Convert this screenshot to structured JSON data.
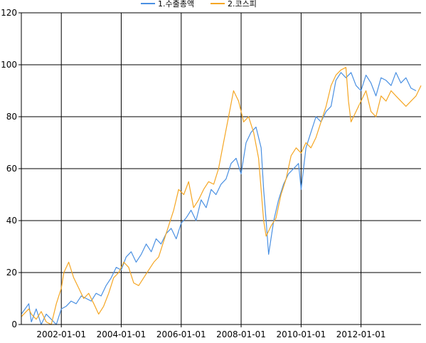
{
  "chart_data": {
    "type": "line",
    "title": "",
    "xlabel": "",
    "ylabel": "",
    "grid": true,
    "legend_position": "top-center",
    "x_range": [
      "2000-09-01",
      "2014-01-01"
    ],
    "ylim": [
      0,
      120
    ],
    "y_ticks": [
      0,
      20,
      40,
      60,
      80,
      100,
      120
    ],
    "y_tick_labels": [
      "0",
      "20",
      "40",
      "60",
      "80",
      "100",
      "120"
    ],
    "x_ticks": [
      "2002-01-01",
      "2004-01-01",
      "2006-01-01",
      "2008-01-01",
      "2010-01-01",
      "2012-01-01"
    ],
    "x_tick_labels": [
      "2002-01-01",
      "2004-01-01",
      "2006-01-01",
      "2008-01-01",
      "2010-01-01",
      "2012-01-01"
    ],
    "series": [
      {
        "name": "1.수출총액",
        "color": "#4a90e2",
        "points": [
          [
            "2000-09-01",
            4
          ],
          [
            "2000-12-01",
            8
          ],
          [
            "2001-01-01",
            1
          ],
          [
            "2001-03-01",
            6
          ],
          [
            "2001-05-01",
            0
          ],
          [
            "2001-07-01",
            4
          ],
          [
            "2001-09-01",
            2
          ],
          [
            "2001-11-01",
            0
          ],
          [
            "2002-01-01",
            6
          ],
          [
            "2002-03-01",
            7
          ],
          [
            "2002-05-01",
            9
          ],
          [
            "2002-07-01",
            8
          ],
          [
            "2002-09-01",
            11
          ],
          [
            "2002-11-01",
            10
          ],
          [
            "2003-01-01",
            9
          ],
          [
            "2003-03-01",
            12
          ],
          [
            "2003-05-01",
            11
          ],
          [
            "2003-07-01",
            15
          ],
          [
            "2003-09-01",
            18
          ],
          [
            "2003-11-01",
            22
          ],
          [
            "2004-01-01",
            21
          ],
          [
            "2004-03-01",
            26
          ],
          [
            "2004-05-01",
            28
          ],
          [
            "2004-07-01",
            24
          ],
          [
            "2004-09-01",
            27
          ],
          [
            "2004-11-01",
            31
          ],
          [
            "2005-01-01",
            28
          ],
          [
            "2005-03-01",
            33
          ],
          [
            "2005-05-01",
            31
          ],
          [
            "2005-07-01",
            35
          ],
          [
            "2005-09-01",
            37
          ],
          [
            "2005-11-01",
            33
          ],
          [
            "2006-01-01",
            39
          ],
          [
            "2006-03-01",
            41
          ],
          [
            "2006-05-01",
            44
          ],
          [
            "2006-07-01",
            40
          ],
          [
            "2006-09-01",
            48
          ],
          [
            "2006-11-01",
            45
          ],
          [
            "2007-01-01",
            52
          ],
          [
            "2007-03-01",
            50
          ],
          [
            "2007-05-01",
            54
          ],
          [
            "2007-07-01",
            56
          ],
          [
            "2007-09-01",
            62
          ],
          [
            "2007-11-01",
            64
          ],
          [
            "2008-01-01",
            58
          ],
          [
            "2008-03-01",
            70
          ],
          [
            "2008-05-01",
            74
          ],
          [
            "2008-07-01",
            76
          ],
          [
            "2008-09-01",
            68
          ],
          [
            "2008-10-01",
            52
          ],
          [
            "2008-11-01",
            40
          ],
          [
            "2008-12-01",
            27
          ],
          [
            "2009-02-01",
            40
          ],
          [
            "2009-04-01",
            48
          ],
          [
            "2009-06-01",
            54
          ],
          [
            "2009-08-01",
            58
          ],
          [
            "2009-10-01",
            60
          ],
          [
            "2009-12-01",
            62
          ],
          [
            "2010-01-01",
            52
          ],
          [
            "2010-03-01",
            68
          ],
          [
            "2010-05-01",
            74
          ],
          [
            "2010-07-01",
            80
          ],
          [
            "2010-09-01",
            78
          ],
          [
            "2010-11-01",
            82
          ],
          [
            "2011-01-01",
            84
          ],
          [
            "2011-03-01",
            94
          ],
          [
            "2011-05-01",
            97
          ],
          [
            "2011-07-01",
            95
          ],
          [
            "2011-09-01",
            97
          ],
          [
            "2011-11-01",
            92
          ],
          [
            "2012-01-01",
            90
          ],
          [
            "2012-03-01",
            96
          ],
          [
            "2012-05-01",
            93
          ],
          [
            "2012-07-01",
            88
          ],
          [
            "2012-09-01",
            95
          ],
          [
            "2012-11-01",
            94
          ],
          [
            "2013-01-01",
            92
          ],
          [
            "2013-03-01",
            97
          ],
          [
            "2013-05-01",
            93
          ],
          [
            "2013-07-01",
            95
          ],
          [
            "2013-09-01",
            91
          ],
          [
            "2013-11-01",
            90
          ]
        ]
      },
      {
        "name": "2.코스피",
        "color": "#f5a623",
        "points": [
          [
            "2000-09-01",
            3
          ],
          [
            "2000-12-01",
            6
          ],
          [
            "2001-01-01",
            4
          ],
          [
            "2001-03-01",
            2
          ],
          [
            "2001-05-01",
            5
          ],
          [
            "2001-07-01",
            1
          ],
          [
            "2001-09-01",
            0
          ],
          [
            "2001-11-01",
            8
          ],
          [
            "2002-01-01",
            14
          ],
          [
            "2002-02-01",
            20
          ],
          [
            "2002-04-01",
            24
          ],
          [
            "2002-06-01",
            18
          ],
          [
            "2002-08-01",
            14
          ],
          [
            "2002-10-01",
            10
          ],
          [
            "2002-12-01",
            12
          ],
          [
            "2003-02-01",
            8
          ],
          [
            "2003-04-01",
            4
          ],
          [
            "2003-06-01",
            7
          ],
          [
            "2003-08-01",
            12
          ],
          [
            "2003-10-01",
            18
          ],
          [
            "2003-12-01",
            20
          ],
          [
            "2004-02-01",
            24
          ],
          [
            "2004-04-01",
            22
          ],
          [
            "2004-06-01",
            16
          ],
          [
            "2004-08-01",
            15
          ],
          [
            "2004-10-01",
            18
          ],
          [
            "2004-12-01",
            21
          ],
          [
            "2005-02-01",
            24
          ],
          [
            "2005-04-01",
            26
          ],
          [
            "2005-06-01",
            32
          ],
          [
            "2005-08-01",
            38
          ],
          [
            "2005-10-01",
            44
          ],
          [
            "2005-12-01",
            52
          ],
          [
            "2006-02-01",
            50
          ],
          [
            "2006-04-01",
            55
          ],
          [
            "2006-06-01",
            45
          ],
          [
            "2006-08-01",
            48
          ],
          [
            "2006-10-01",
            52
          ],
          [
            "2006-12-01",
            55
          ],
          [
            "2007-02-01",
            54
          ],
          [
            "2007-04-01",
            60
          ],
          [
            "2007-06-01",
            70
          ],
          [
            "2007-08-01",
            80
          ],
          [
            "2007-10-01",
            90
          ],
          [
            "2007-12-01",
            86
          ],
          [
            "2008-02-01",
            78
          ],
          [
            "2008-04-01",
            80
          ],
          [
            "2008-06-01",
            74
          ],
          [
            "2008-08-01",
            64
          ],
          [
            "2008-10-01",
            40
          ],
          [
            "2008-11-01",
            34
          ],
          [
            "2009-01-01",
            38
          ],
          [
            "2009-03-01",
            41
          ],
          [
            "2009-05-01",
            50
          ],
          [
            "2009-07-01",
            56
          ],
          [
            "2009-09-01",
            65
          ],
          [
            "2009-11-01",
            68
          ],
          [
            "2010-01-01",
            66
          ],
          [
            "2010-03-01",
            70
          ],
          [
            "2010-05-01",
            68
          ],
          [
            "2010-07-01",
            72
          ],
          [
            "2010-09-01",
            78
          ],
          [
            "2010-11-01",
            84
          ],
          [
            "2011-01-01",
            92
          ],
          [
            "2011-03-01",
            96
          ],
          [
            "2011-05-01",
            98
          ],
          [
            "2011-07-01",
            99
          ],
          [
            "2011-08-01",
            86
          ],
          [
            "2011-09-01",
            78
          ],
          [
            "2011-11-01",
            82
          ],
          [
            "2012-01-01",
            86
          ],
          [
            "2012-03-01",
            90
          ],
          [
            "2012-05-01",
            82
          ],
          [
            "2012-07-01",
            80
          ],
          [
            "2012-09-01",
            88
          ],
          [
            "2012-11-01",
            86
          ],
          [
            "2013-01-01",
            90
          ],
          [
            "2013-03-01",
            88
          ],
          [
            "2013-05-01",
            86
          ],
          [
            "2013-07-01",
            84
          ],
          [
            "2013-09-01",
            86
          ],
          [
            "2013-11-01",
            88
          ],
          [
            "2014-01-01",
            92
          ]
        ]
      }
    ]
  }
}
